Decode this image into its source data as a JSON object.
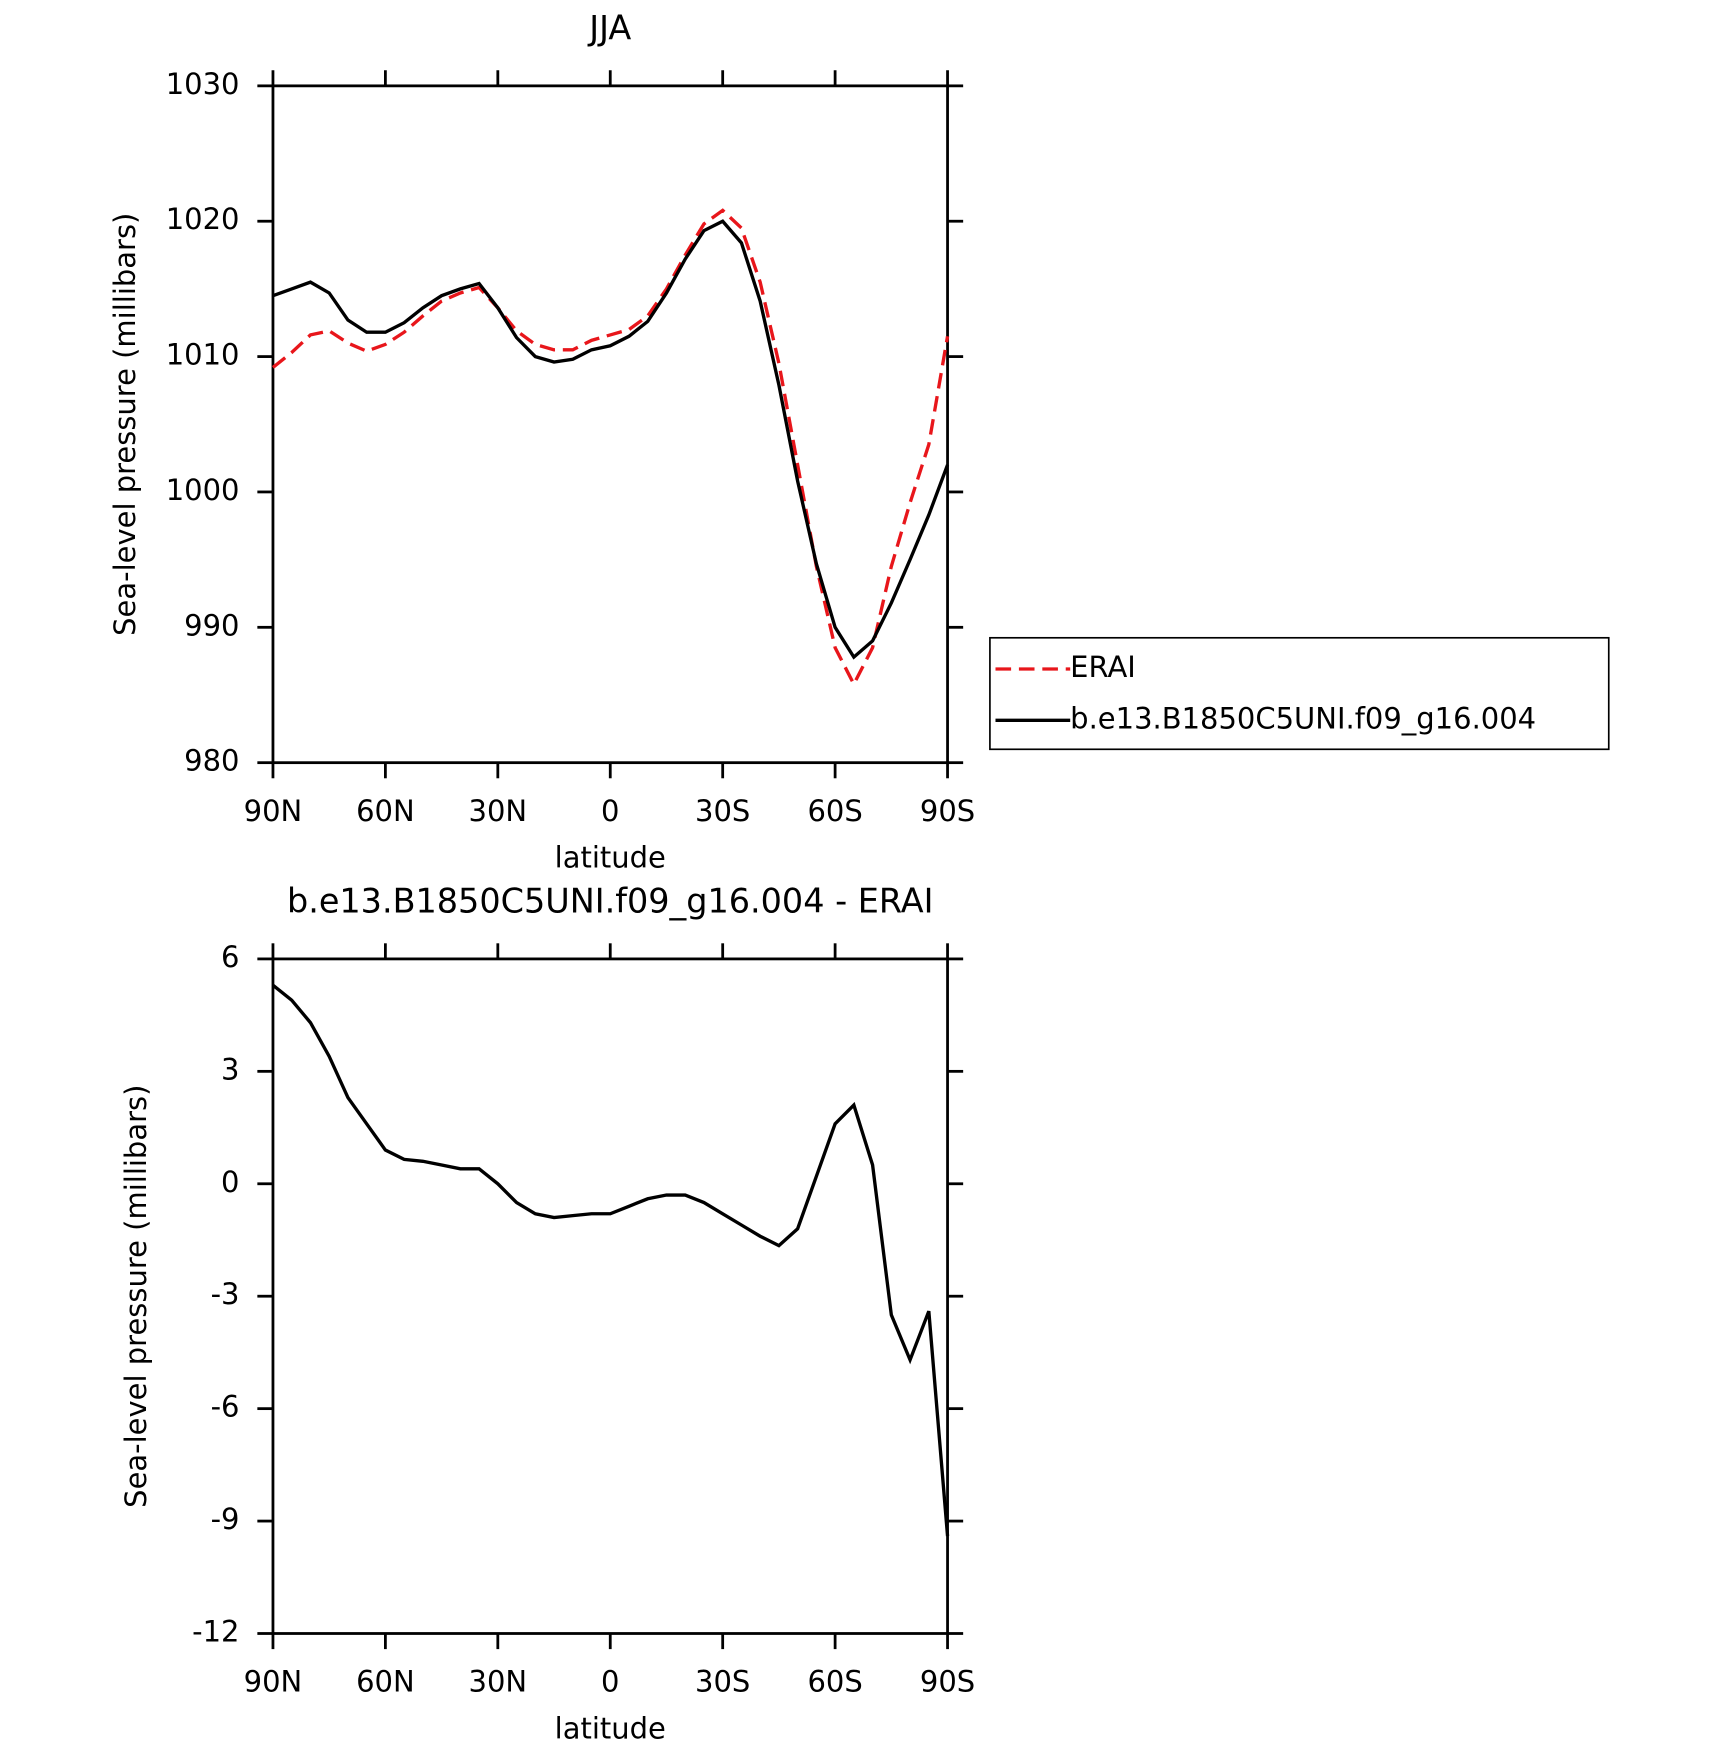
{
  "chart_data": [
    {
      "type": "line",
      "title": "JJA",
      "x_label": "latitude",
      "y_label": "Sea-level pressure (millibars)",
      "x": [
        90,
        85,
        80,
        75,
        70,
        65,
        60,
        55,
        50,
        45,
        40,
        35,
        30,
        25,
        20,
        15,
        10,
        5,
        0,
        -5,
        -10,
        -15,
        -20,
        -25,
        -30,
        -35,
        -40,
        -45,
        -50,
        -55,
        -60,
        -65,
        -70,
        -75,
        -80,
        -85,
        -90
      ],
      "series": [
        {
          "name": "ERAI",
          "color": "#e8161b",
          "line_style": "dashed",
          "values": [
            1009.2,
            1010.3,
            1011.6,
            1011.9,
            1011.0,
            1010.4,
            1010.9,
            1011.8,
            1013.0,
            1014.1,
            1014.7,
            1015.1,
            1013.6,
            1011.9,
            1010.9,
            1010.5,
            1010.5,
            1011.2,
            1011.6,
            1012.0,
            1013.0,
            1015.0,
            1017.5,
            1019.8,
            1020.8,
            1019.5,
            1015.5,
            1009.5,
            1002.0,
            994.5,
            988.5,
            985.8,
            988.5,
            994.5,
            999.2,
            1003.5,
            1011.5
          ]
        },
        {
          "name": "b.e13.B1850C5UNI.f09_g16.004",
          "color": "#000000",
          "line_style": "solid",
          "values": [
            1014.5,
            1015.0,
            1015.5,
            1014.7,
            1012.7,
            1011.8,
            1011.8,
            1012.5,
            1013.6,
            1014.5,
            1015.0,
            1015.4,
            1013.6,
            1011.4,
            1010.0,
            1009.6,
            1009.8,
            1010.5,
            1010.8,
            1011.5,
            1012.6,
            1014.7,
            1017.2,
            1019.3,
            1020.0,
            1018.4,
            1014.1,
            1007.9,
            1000.8,
            994.7,
            990.0,
            987.8,
            989.0,
            991.8,
            995.0,
            998.3,
            1002.0
          ]
        }
      ],
      "xlim": [
        90,
        -90
      ],
      "ylim": [
        980,
        1030
      ],
      "xticks": [
        {
          "value": 90,
          "label": "90N"
        },
        {
          "value": 60,
          "label": "60N"
        },
        {
          "value": 30,
          "label": "30N"
        },
        0,
        {
          "value": -30,
          "label": "30S"
        },
        {
          "value": -60,
          "label": "60S"
        },
        {
          "value": -90,
          "label": "90S"
        }
      ],
      "yticks": [
        980,
        990,
        1000,
        1010,
        1020,
        1030
      ],
      "legend": "right"
    },
    {
      "type": "line",
      "title": "b.e13.B1850C5UNI.f09_g16.004 - ERAI",
      "x_label": "latitude",
      "y_label": "Sea-level pressure (millibars)",
      "x": [
        90,
        85,
        80,
        75,
        70,
        65,
        60,
        55,
        50,
        45,
        40,
        35,
        30,
        25,
        20,
        15,
        10,
        5,
        0,
        -5,
        -10,
        -15,
        -20,
        -25,
        -30,
        -35,
        -40,
        -45,
        -50,
        -55,
        -60,
        -65,
        -70,
        -75,
        -80,
        -85,
        -90
      ],
      "series": [
        {
          "color": "#000000",
          "line_style": "solid",
          "values": [
            5.3,
            4.9,
            4.3,
            3.4,
            2.3,
            1.6,
            0.9,
            0.65,
            0.6,
            0.5,
            0.4,
            0.4,
            0.0,
            -0.5,
            -0.8,
            -0.9,
            -0.85,
            -0.8,
            -0.8,
            -0.6,
            -0.4,
            -0.3,
            -0.3,
            -0.5,
            -0.8,
            -1.1,
            -1.4,
            -1.65,
            -1.2,
            0.2,
            1.6,
            2.1,
            0.5,
            -3.5,
            -4.7,
            -3.4,
            -9.4
          ]
        }
      ],
      "xlim": [
        90,
        -90
      ],
      "ylim": [
        -12,
        6
      ],
      "xticks": [
        {
          "value": 90,
          "label": "90N"
        },
        {
          "value": 60,
          "label": "60N"
        },
        {
          "value": 30,
          "label": "30N"
        },
        0,
        {
          "value": -30,
          "label": "30S"
        },
        {
          "value": -60,
          "label": "60S"
        },
        {
          "value": -90,
          "label": "90S"
        }
      ],
      "yticks": [
        -12,
        -9,
        -6,
        -3,
        0,
        3,
        6
      ]
    }
  ]
}
